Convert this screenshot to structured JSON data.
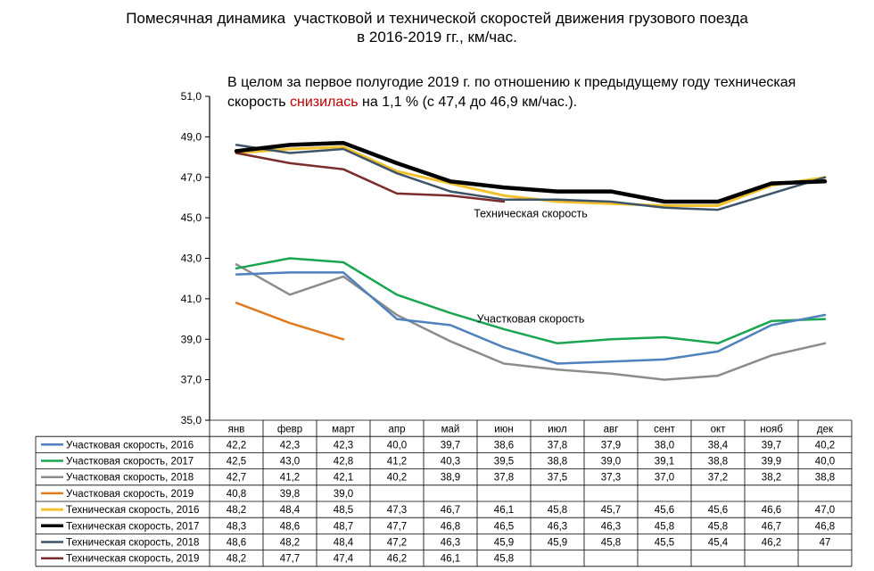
{
  "title": {
    "line1": "Помесячная динамика  участковой и технической скоростей движения грузового поезда",
    "line2": "в 2016-2019 гг., км/час."
  },
  "annotation": {
    "part1": "В целом за первое полугодие 2019 г. по отношению к предыдущему году техническая скорость ",
    "highlight": "снизилась",
    "part2": " на  1,1 % (с 47,4  до 46,9 км/час.)."
  },
  "chart_data": {
    "type": "line",
    "categories": [
      "янв",
      "февр",
      "март",
      "апр",
      "май",
      "июн",
      "июл",
      "авг",
      "сент",
      "окт",
      "нояб",
      "дек"
    ],
    "y_ticks": [
      "51,0",
      "49,0",
      "47,0",
      "45,0",
      "43,0",
      "41,0",
      "39,0",
      "37,0",
      "35,0"
    ],
    "ylim": [
      35,
      51
    ],
    "y_step": 2,
    "grid": false,
    "annotations": [
      {
        "text": "Техническая скорость",
        "x_month": 6,
        "y": 45.2
      },
      {
        "text": "Участковая скорость",
        "x_month": 6,
        "y": 40.0
      }
    ],
    "series": [
      {
        "name": "Участковая скорость, 2016",
        "color": "#4f81bd",
        "width": 2.5,
        "values": [
          42.2,
          42.3,
          42.3,
          40.0,
          39.7,
          38.6,
          37.8,
          37.9,
          38.0,
          38.4,
          39.7,
          40.2
        ],
        "labels": [
          "42,2",
          "42,3",
          "42,3",
          "40,0",
          "39,7",
          "38,6",
          "37,8",
          "37,9",
          "38,0",
          "38,4",
          "39,7",
          "40,2"
        ]
      },
      {
        "name": "Участковая скорость, 2017",
        "color": "#1aa550",
        "width": 2.5,
        "values": [
          42.5,
          43.0,
          42.8,
          41.2,
          40.3,
          39.5,
          38.8,
          39.0,
          39.1,
          38.8,
          39.9,
          40.0
        ],
        "labels": [
          "42,5",
          "43,0",
          "42,8",
          "41,2",
          "40,3",
          "39,5",
          "38,8",
          "39,0",
          "39,1",
          "38,8",
          "39,9",
          "40,0"
        ]
      },
      {
        "name": "Участковая скорость, 2018",
        "color": "#8c8c8c",
        "width": 2.5,
        "values": [
          42.7,
          41.2,
          42.1,
          40.2,
          38.9,
          37.8,
          37.5,
          37.3,
          37.0,
          37.2,
          38.2,
          38.8
        ],
        "labels": [
          "42,7",
          "41,2",
          "42,1",
          "40,2",
          "38,9",
          "37,8",
          "37,5",
          "37,3",
          "37,0",
          "37,2",
          "38,2",
          "38,8"
        ]
      },
      {
        "name": "Участковая скорость, 2019",
        "color": "#e07a1f",
        "width": 2.5,
        "values": [
          40.8,
          39.8,
          39.0,
          null,
          null,
          null,
          null,
          null,
          null,
          null,
          null,
          null
        ],
        "labels": [
          "40,8",
          "39,8",
          "39,0",
          "",
          "",
          "",
          "",
          "",
          "",
          "",
          "",
          ""
        ]
      },
      {
        "name": "Техническая скорость, 2016",
        "color": "#f2c12e",
        "width": 3,
        "values": [
          48.2,
          48.4,
          48.5,
          47.3,
          46.7,
          46.1,
          45.8,
          45.7,
          45.6,
          45.6,
          46.6,
          47.0
        ],
        "labels": [
          "48,2",
          "48,4",
          "48,5",
          "47,3",
          "46,7",
          "46,1",
          "45,8",
          "45,7",
          "45,6",
          "45,6",
          "46,6",
          "47,0"
        ]
      },
      {
        "name": "Техническая скорость, 2017",
        "color": "#000000",
        "width": 4.5,
        "values": [
          48.3,
          48.6,
          48.7,
          47.7,
          46.8,
          46.5,
          46.3,
          46.3,
          45.8,
          45.8,
          46.7,
          46.8
        ],
        "labels": [
          "48,3",
          "48,6",
          "48,7",
          "47,7",
          "46,8",
          "46,5",
          "46,3",
          "46,3",
          "45,8",
          "45,8",
          "46,7",
          "46,8"
        ]
      },
      {
        "name": "Техническая скорость, 2018",
        "color": "#3e5468",
        "width": 2.5,
        "values": [
          48.6,
          48.2,
          48.4,
          47.2,
          46.3,
          45.9,
          45.9,
          45.8,
          45.5,
          45.4,
          46.2,
          47.0
        ],
        "labels": [
          "48,6",
          "48,2",
          "48,4",
          "47,2",
          "46,3",
          "45,9",
          "45,9",
          "45,8",
          "45,5",
          "45,4",
          "46,2",
          "47"
        ]
      },
      {
        "name": "Техническая скорость, 2019",
        "color": "#7b2c2c",
        "width": 2.5,
        "values": [
          48.2,
          47.7,
          47.4,
          46.2,
          46.1,
          45.8,
          null,
          null,
          null,
          null,
          null,
          null
        ],
        "labels": [
          "48,2",
          "47,7",
          "47,4",
          "46,2",
          "46,1",
          "45,8",
          "",
          "",
          "",
          "",
          "",
          ""
        ]
      }
    ],
    "draw_order": [
      2,
      1,
      0,
      3,
      4,
      6,
      7,
      5
    ]
  }
}
